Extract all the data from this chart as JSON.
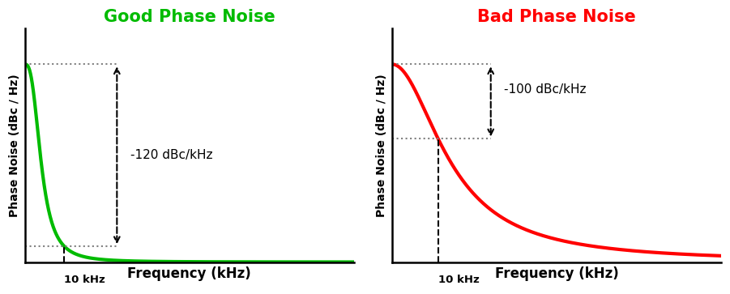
{
  "left_title": "Good Phase Noise",
  "right_title": "Bad Phase Noise",
  "left_title_color": "#00bb00",
  "right_title_color": "#ff0000",
  "left_curve_color": "#00bb00",
  "right_curve_color": "#ff0000",
  "xlabel": "Frequency (kHz)",
  "ylabel": "Phase Noise (dBc / Hz)",
  "left_annotation": "-120 dBc/kHz",
  "right_annotation": "-100 dBc/kHz",
  "freq_label": "10 kHz",
  "background_color": "#ffffff",
  "curve_linewidth": 3.0,
  "title_fontsize": 15,
  "label_fontsize": 12,
  "annotation_fontsize": 11,
  "ylabel_fontsize": 10
}
